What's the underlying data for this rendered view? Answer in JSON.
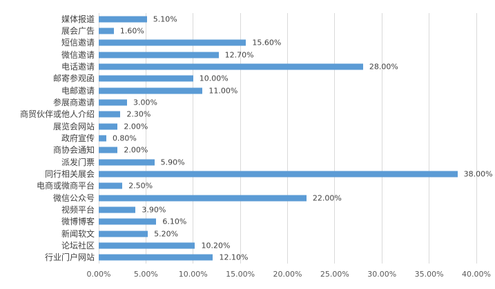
{
  "chart_data": {
    "type": "bar",
    "orientation": "horizontal",
    "title": "",
    "xlabel": "",
    "ylabel": "",
    "xlim": [
      0,
      40
    ],
    "grid": true,
    "legend": false,
    "bar_color": "#5B9BD5",
    "gridline_color": "#D9D9D9",
    "category_label_color": "#404040",
    "value_label_color": "#404040",
    "axis_tick_color": "#595959",
    "categories": [
      "媒体报道",
      "展会广告",
      "短信邀请",
      "微信邀请",
      "电话邀请",
      "邮寄参观函",
      "电邮邀请",
      "参展商邀请",
      "商贸伙伴或他人介绍",
      "展览会网站",
      "政府宣传",
      "商协会通知",
      "派发门票",
      "同行相关展会",
      "电商或微商平台",
      "微信公众号",
      "视频平台",
      "微博博客",
      "新闻软文",
      "论坛社区",
      "行业门户网站"
    ],
    "values": [
      5.1,
      1.6,
      15.6,
      12.7,
      28.0,
      10.0,
      11.0,
      3.0,
      2.3,
      2.0,
      0.8,
      2.0,
      5.9,
      38.0,
      2.5,
      22.0,
      3.9,
      6.1,
      5.2,
      10.2,
      12.1
    ],
    "value_labels": [
      "5.10%",
      "1.60%",
      "15.60%",
      "12.70%",
      "28.00%",
      "10.00%",
      "11.00%",
      "3.00%",
      "2.30%",
      "2.00%",
      "0.80%",
      "2.00%",
      "5.90%",
      "38.00%",
      "2.50%",
      "22.00%",
      "3.90%",
      "6.10%",
      "5.20%",
      "10.20%",
      "12.10%"
    ],
    "x_tick_values": [
      0,
      5,
      10,
      15,
      20,
      25,
      30,
      35,
      40
    ],
    "x_tick_labels": [
      "0.00%",
      "5.00%",
      "10.00%",
      "15.00%",
      "20.00%",
      "25.00%",
      "30.00%",
      "35.00%",
      "40.00%"
    ]
  }
}
